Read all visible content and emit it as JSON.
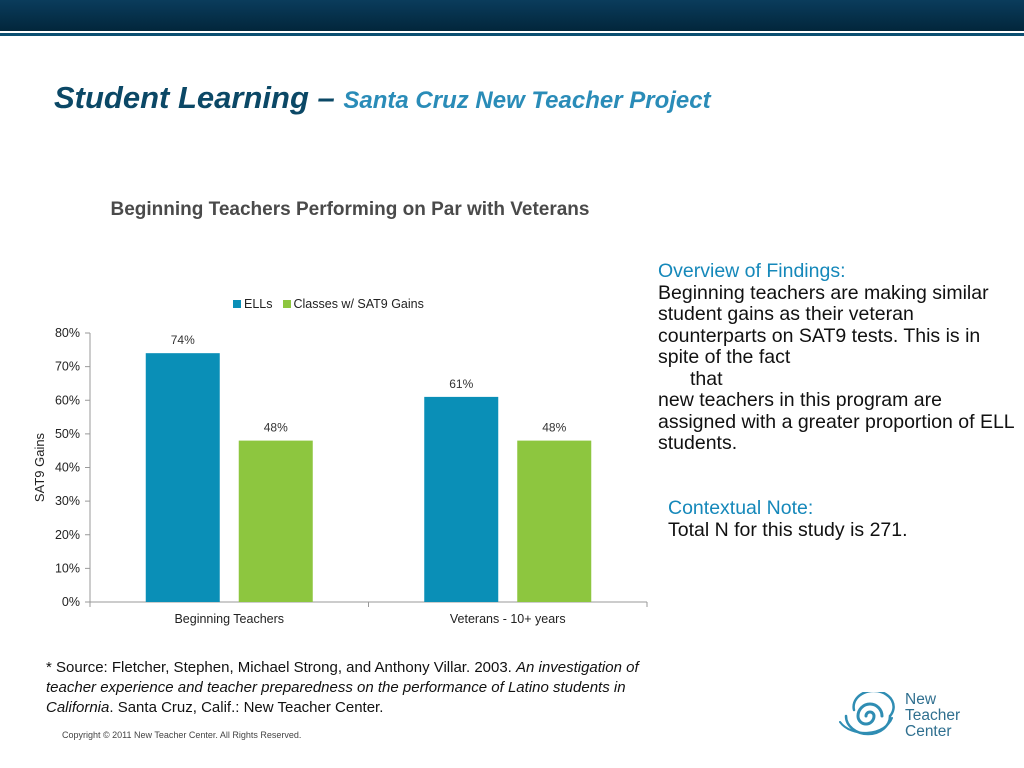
{
  "header": {
    "title_main": "Student Learning –",
    "title_sub": "Santa Cruz New Teacher Project"
  },
  "chart_data": {
    "type": "bar",
    "title": "Beginning Teachers Performing on Par with Veterans",
    "categories": [
      "Beginning Teachers",
      "Veterans - 10+ years"
    ],
    "series": [
      {
        "name": "ELLs",
        "values": [
          74,
          61
        ],
        "labels": [
          "74%",
          "61%"
        ],
        "color": "#0a8fb7"
      },
      {
        "name": "Classes w/ SAT9 Gains",
        "values": [
          48,
          48
        ],
        "labels": [
          "48%",
          "48%"
        ],
        "color": "#8dc63f"
      }
    ],
    "xlabel": "",
    "ylabel": "SAT9 Gains",
    "ylim": [
      0,
      80
    ],
    "yticks": [
      "0%",
      "10%",
      "20%",
      "30%",
      "40%",
      "50%",
      "60%",
      "70%",
      "80%"
    ],
    "grid": false,
    "legend_position": "top"
  },
  "findings": {
    "heading": "Overview of Findings:",
    "line1": "Beginning teachers are making similar student gains as their veteran counterparts on SAT9 tests. This is in spite of the fact",
    "line2": "that",
    "line3": "new teachers in this program are assigned with a greater proportion of ELL students."
  },
  "context": {
    "heading": "Contextual Note:",
    "text": "Total N for this study is 271."
  },
  "source": {
    "prefix": "* Source: Fletcher, Stephen, Michael Strong, and Anthony Villar. 2003. ",
    "italic": "An investigation of teacher experience and teacher preparedness on the performance of Latino students in  California",
    "suffix": ". Santa Cruz, Calif.: New Teacher Center."
  },
  "footer": {
    "copyright": "Copyright © 2011 New Teacher Center. All Rights Reserved."
  },
  "logo": {
    "icon": "swirl-logo-icon",
    "line1": "New",
    "line2": "Teacher",
    "line3": "Center",
    "color": "#2f8db3"
  }
}
